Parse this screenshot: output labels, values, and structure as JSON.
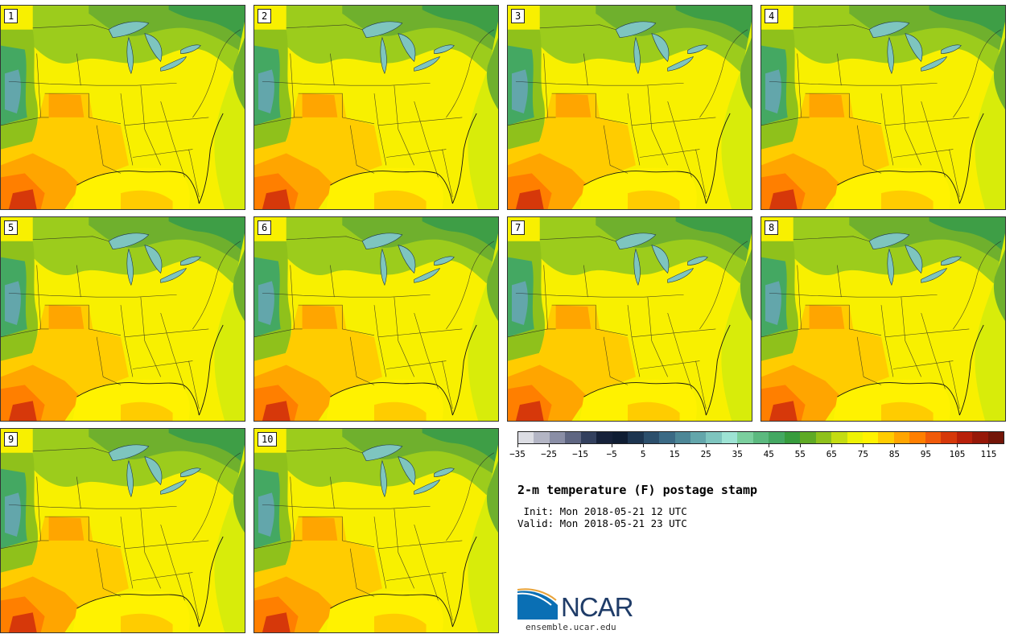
{
  "members": [
    "1",
    "2",
    "3",
    "4",
    "5",
    "6",
    "7",
    "8",
    "9",
    "10"
  ],
  "colorbar": {
    "colors": [
      "#dcdde3",
      "#b3b5c4",
      "#8a8ea6",
      "#5f6682",
      "#33405e",
      "#16213a",
      "#0f1d33",
      "#1d3550",
      "#2c4f6c",
      "#3b6a85",
      "#4d8797",
      "#63a6ab",
      "#7ec5bf",
      "#9de3d4",
      "#7bcf9e",
      "#5cb97f",
      "#44a862",
      "#379c3d",
      "#5faa25",
      "#8fc11b",
      "#c4dc12",
      "#eef204",
      "#fff200",
      "#ffcc00",
      "#ffa500",
      "#ff7f00",
      "#f05a0a",
      "#d6380a",
      "#b8200a",
      "#961808",
      "#731508"
    ],
    "tick_values": [
      "−35",
      "−25",
      "−15",
      "−5",
      "5",
      "15",
      "25",
      "35",
      "45",
      "55",
      "65",
      "75",
      "85",
      "95",
      "105",
      "115"
    ]
  },
  "title": "2-m temperature (F) postage stamp",
  "init_line": " Init: Mon 2018-05-21 12 UTC",
  "valid_line": "Valid: Mon 2018-05-21 23 UTC",
  "logo": {
    "text": "NCAR",
    "url": "ensemble.ucar.edu"
  }
}
